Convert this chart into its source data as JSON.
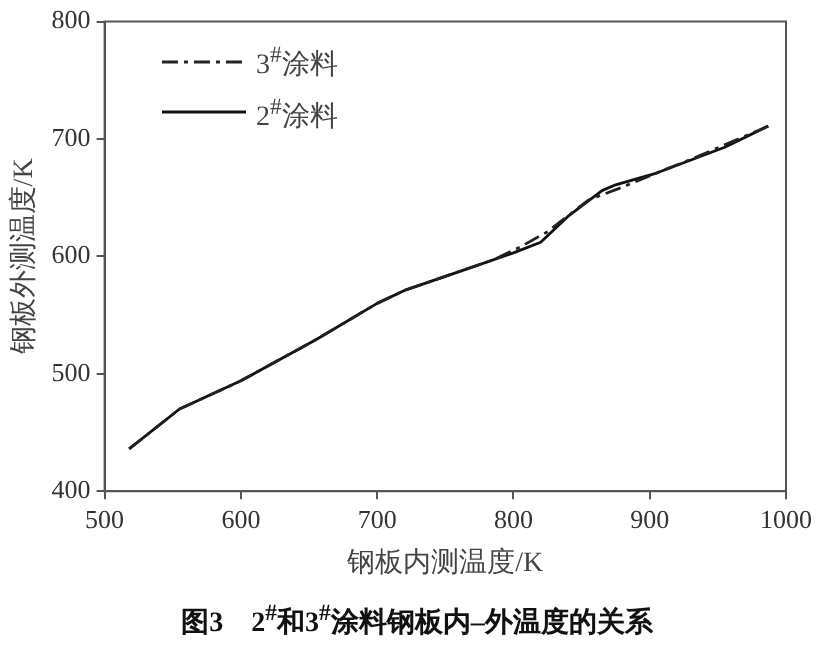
{
  "chart_data": {
    "type": "line",
    "title": "图3　2$^{#}$和3$^{#}$涂料钢板内–外温度的关系",
    "xlabel": "钢板内测温度/K",
    "ylabel": "钢板外测温度/K",
    "xlim": [
      500,
      1000
    ],
    "xticks": [
      500,
      600,
      700,
      800,
      900,
      1000
    ],
    "ylim": [
      400,
      800
    ],
    "yticks": [
      400,
      500,
      600,
      700,
      800
    ],
    "grid": false,
    "legend": "top left",
    "marker": "none",
    "series": [
      {
        "name": "3$^{#}$涂料",
        "color": "#222222",
        "line_style": "dashdot",
        "x": [
          518,
          555,
          600,
          655,
          700,
          720,
          765,
          785,
          805,
          825,
          855,
          880,
          905,
          935,
          987
        ],
        "values": [
          436,
          470,
          494,
          529,
          560,
          571,
          589,
          597,
          608,
          621,
          648,
          659,
          671,
          685,
          711
        ]
      },
      {
        "name": "2$^{#}$涂料",
        "color": "#111111",
        "line_style": "solid",
        "x": [
          518,
          555,
          600,
          655,
          700,
          720,
          765,
          800,
          820,
          840,
          865,
          875,
          905,
          955,
          987
        ],
        "values": [
          436,
          470,
          494,
          529,
          560,
          571,
          589,
          603,
          612,
          634,
          656,
          661,
          671,
          693,
          711
        ]
      }
    ]
  }
}
